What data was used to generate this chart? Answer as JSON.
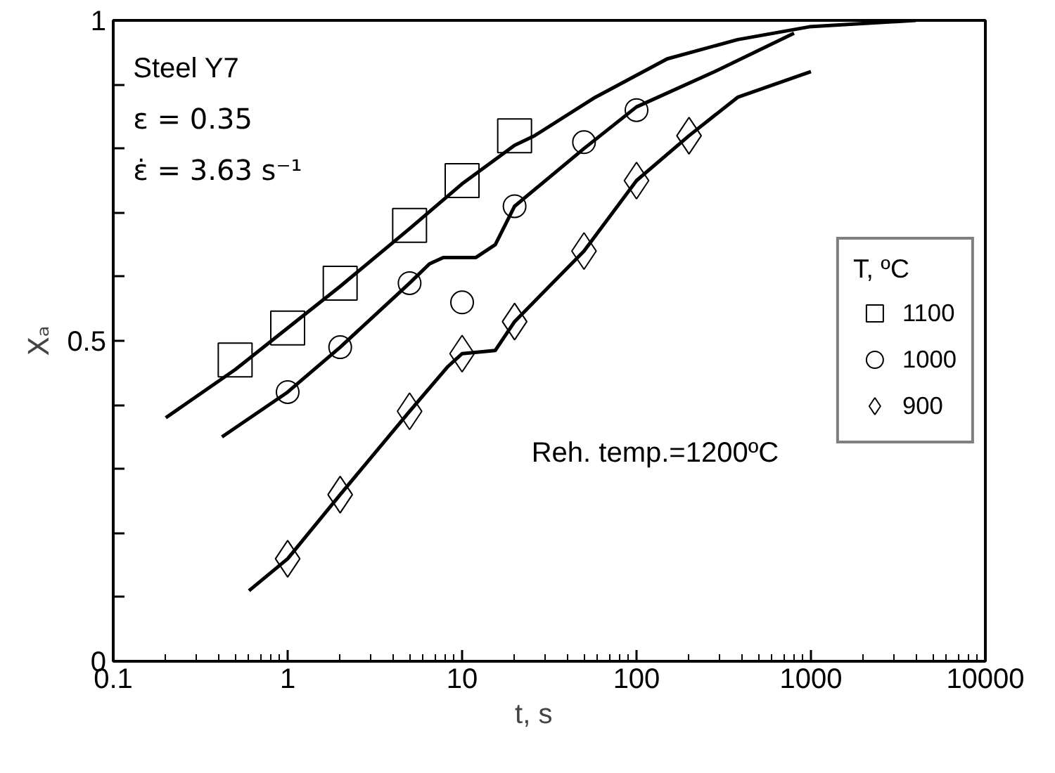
{
  "chart_data": {
    "type": "scatter",
    "xlabel": "t,     s",
    "ylabel": "Xₐ",
    "legend_title": "T, ºC",
    "legend": "right",
    "log": "x",
    "grid": false,
    "xlim": [
      0.1,
      10000
    ],
    "xticks": [
      {
        "value": 0.1,
        "label": "0.1"
      },
      1,
      10,
      100,
      1000,
      10000
    ],
    "ylim": [
      0,
      1
    ],
    "yticks": [
      0,
      {
        "value": 0.1,
        "label": null
      },
      {
        "value": 0.2,
        "label": null
      },
      {
        "value": 0.3,
        "label": null
      },
      {
        "value": 0.4,
        "label": null
      },
      0.5,
      {
        "value": 0.6,
        "label": null
      },
      {
        "value": 0.7,
        "label": null
      },
      {
        "value": 0.8,
        "label": null
      },
      {
        "value": 0.9,
        "label": null
      },
      1
    ],
    "annotations": [
      "Steel Y7",
      "ε = 0.35",
      "ε̇ = 3.63 s⁻¹",
      "Reh. temp.=1200ºC"
    ],
    "series": [
      {
        "name": "1100",
        "marker": "square",
        "color": "#000000",
        "x": [
          0.5,
          1,
          2,
          5,
          10,
          20
        ],
        "values": [
          0.47,
          0.52,
          0.59,
          0.68,
          0.75,
          0.82
        ]
      },
      {
        "name": "1000",
        "marker": "circle",
        "color": "#000000",
        "x": [
          1,
          2,
          5,
          10,
          20,
          50,
          100
        ],
        "values": [
          0.42,
          0.49,
          0.59,
          0.56,
          0.71,
          0.81,
          0.86
        ]
      },
      {
        "name": "900",
        "marker": "diamond",
        "color": "#000000",
        "x": [
          1,
          2,
          5,
          10,
          20,
          50,
          100,
          200
        ],
        "values": [
          0.16,
          0.26,
          0.39,
          0.48,
          0.53,
          0.64,
          0.75,
          0.82
        ]
      },
      {
        "type": "line",
        "color": "#000000",
        "line_style": "solid",
        "x": [
          0.2,
          0.5,
          1,
          2,
          5,
          10,
          20,
          26,
          58,
          150,
          380,
          980,
          4000
        ],
        "values": [
          0.38,
          0.455,
          0.52,
          0.585,
          0.675,
          0.745,
          0.805,
          0.82,
          0.88,
          0.94,
          0.97,
          0.99,
          1.0
        ]
      },
      {
        "type": "line",
        "color": "#000000",
        "line_style": "solid",
        "x": [
          0.42,
          1,
          2,
          5,
          6.5,
          7.8,
          12,
          15.5,
          20,
          50,
          100,
          280,
          800
        ],
        "values": [
          0.35,
          0.42,
          0.49,
          0.59,
          0.62,
          0.63,
          0.63,
          0.65,
          0.71,
          0.8,
          0.865,
          0.92,
          0.98
        ]
      },
      {
        "type": "line",
        "color": "#000000",
        "line_style": "solid",
        "x": [
          0.6,
          1,
          2,
          5,
          8.3,
          10,
          15.5,
          20,
          50,
          100,
          200,
          380,
          1000
        ],
        "values": [
          0.11,
          0.16,
          0.26,
          0.39,
          0.46,
          0.48,
          0.485,
          0.53,
          0.64,
          0.75,
          0.82,
          0.88,
          0.92
        ]
      }
    ]
  }
}
